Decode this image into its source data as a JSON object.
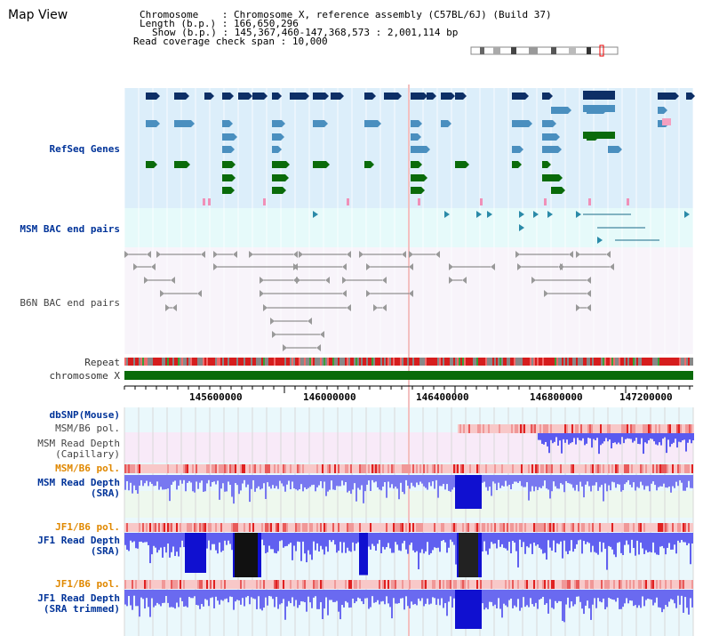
{
  "page_title": "Map View",
  "info": {
    "chromosome_label": "Chromosome",
    "chromosome_value": "Chromosome X, reference assembly (C57BL/6J) (Build 37)",
    "length_label": "Length (b.p.)",
    "length_value": "166,650,296",
    "show_label": "Show (b.p.)",
    "show_value": "145,367,460-147,368,573 : 2,001,114 bp",
    "coverage_label": "Read coverage check span",
    "coverage_value": "10,000"
  },
  "tracks": {
    "refseq": "RefSeq Genes",
    "msm_bac": "MSM BAC end pairs",
    "b6n_bac": "B6N BAC end pairs",
    "repeat": "Repeat",
    "chromosome": "chromosome X",
    "dbsnp": "dbSNP(Mouse)",
    "msm_b6_pol_1": "MSM/B6 pol.",
    "msm_read_depth_cap_1": "MSM Read Depth",
    "msm_read_depth_cap_2": "(Capillary)",
    "msm_b6_pol_2": "MSM/B6 pol.",
    "msm_read_depth_sra_1": "MSM Read Depth",
    "msm_read_depth_sra_2": "(SRA)",
    "jf1_b6_pol_1": "JF1/B6 pol.",
    "jf1_read_depth_sra_1": "JF1 Read Depth",
    "jf1_read_depth_sra_2": "(SRA)",
    "jf1_b6_pol_2": "JF1/B6 pol.",
    "jf1_read_depth_trim_1": "JF1 Read Depth",
    "jf1_read_depth_trim_2": "(SRA trimmed)"
  },
  "axis": {
    "ticks": [
      "145600000",
      "146000000",
      "146400000",
      "146800000",
      "147200000"
    ]
  },
  "colors": {
    "refseq_bg": "#dceefa",
    "bac_bg": "#e6fafa",
    "b6n_bg": "#f8f4fa",
    "gene_navy": "#0d2f66",
    "gene_steel": "#4a8fbf",
    "gene_green": "#0a6b0a",
    "chromosome_bar": "#0a6b0a",
    "depth_blue": "#3b3bff",
    "label_blue": "#003399",
    "label_orange": "#e08800"
  },
  "icons": [
    "chromosome-ideogram-icon",
    "forward-arrow-icon",
    "reverse-arrow-icon"
  ]
}
